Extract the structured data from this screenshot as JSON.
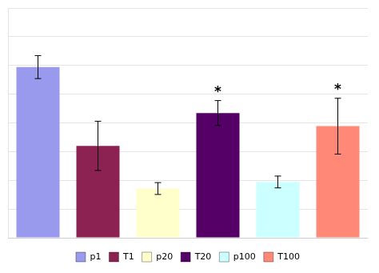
{
  "chart_data": {
    "type": "bar",
    "categories": [
      "p1",
      "T1",
      "p20",
      "T20",
      "p100",
      "T100"
    ],
    "values": [
      5.2,
      2.8,
      1.5,
      3.8,
      1.7,
      3.4
    ],
    "errors": [
      0.35,
      0.75,
      0.18,
      0.38,
      0.18,
      0.85
    ],
    "colors": [
      "#9999ee",
      "#8b2252",
      "#ffffcc",
      "#550066",
      "#ccffff",
      "#ff8877"
    ],
    "annotations": [
      {
        "text": "*",
        "x": "T20"
      },
      {
        "text": "*",
        "x": "T100"
      }
    ],
    "ylim": [
      0,
      7
    ],
    "yticks": [
      0,
      0.875,
      1.75,
      2.625,
      3.5,
      4.375,
      5.25,
      6.125,
      7
    ],
    "grid": true,
    "tick_labels": false,
    "legend": "bottom"
  }
}
